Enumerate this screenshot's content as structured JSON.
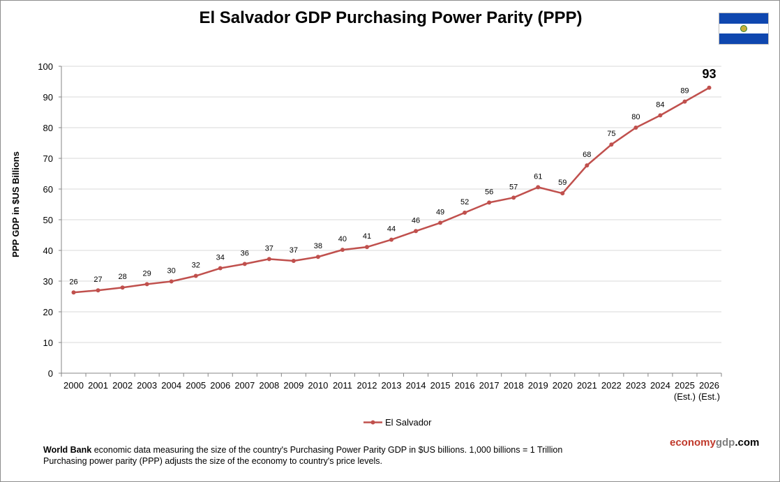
{
  "title": "El Salvador GDP Purchasing Power Parity (PPP)",
  "flag": {
    "name": "el-salvador-flag",
    "colors": [
      "#0f47af",
      "#ffffff",
      "#0f47af"
    ]
  },
  "chart_data": {
    "type": "line",
    "title": "El Salvador GDP Purchasing Power Parity (PPP)",
    "ylabel": "PPP GDP in $US Billions",
    "xlabel": "",
    "ylim": [
      0,
      100
    ],
    "yticks": [
      0,
      10,
      20,
      30,
      40,
      50,
      60,
      70,
      80,
      90,
      100
    ],
    "grid": true,
    "legend_position": "bottom-center",
    "categories": [
      "2000",
      "2001",
      "2002",
      "2003",
      "2004",
      "2005",
      "2006",
      "2007",
      "2008",
      "2009",
      "2010",
      "2011",
      "2012",
      "2013",
      "2014",
      "2015",
      "2016",
      "2017",
      "2018",
      "2019",
      "2020",
      "2021",
      "2022",
      "2023",
      "2024",
      "2025",
      "2026"
    ],
    "category_sublabels": [
      "",
      "",
      "",
      "",
      "",
      "",
      "",
      "",
      "",
      "",
      "",
      "",
      "",
      "",
      "",
      "",
      "",
      "",
      "",
      "",
      "",
      "",
      "",
      "",
      "",
      "(Est.)",
      "(Est.)"
    ],
    "series": [
      {
        "name": "El Salvador",
        "color": "#c0504d",
        "values": [
          26.3,
          27.0,
          27.9,
          29.0,
          29.9,
          31.7,
          34.2,
          35.6,
          37.2,
          36.6,
          37.9,
          40.2,
          41.1,
          43.5,
          46.3,
          49.0,
          52.3,
          55.6,
          57.2,
          60.6,
          58.6,
          67.7,
          74.5,
          80.0,
          84.0,
          88.5,
          93.0
        ],
        "labels": [
          "26",
          "27",
          "28",
          "29",
          "30",
          "32",
          "34",
          "36",
          "37",
          "37",
          "38",
          "40",
          "41",
          "44",
          "46",
          "49",
          "52",
          "56",
          "57",
          "61",
          "59",
          "68",
          "75",
          "80",
          "84",
          "89",
          "93"
        ]
      }
    ]
  },
  "footer": {
    "source_bold": "World Bank",
    "line1_rest": " economic data measuring the size of the country's Purchasing Power Parity GDP in $US billions. 1,000 billions = 1 Trillion",
    "line2": "Purchasing power parity (PPP) adjusts the size of the economy to country's price levels."
  },
  "brand": {
    "part1": "economy",
    "part2": "gdp",
    "part3": ".com",
    "accent_color": "#c0392b"
  }
}
